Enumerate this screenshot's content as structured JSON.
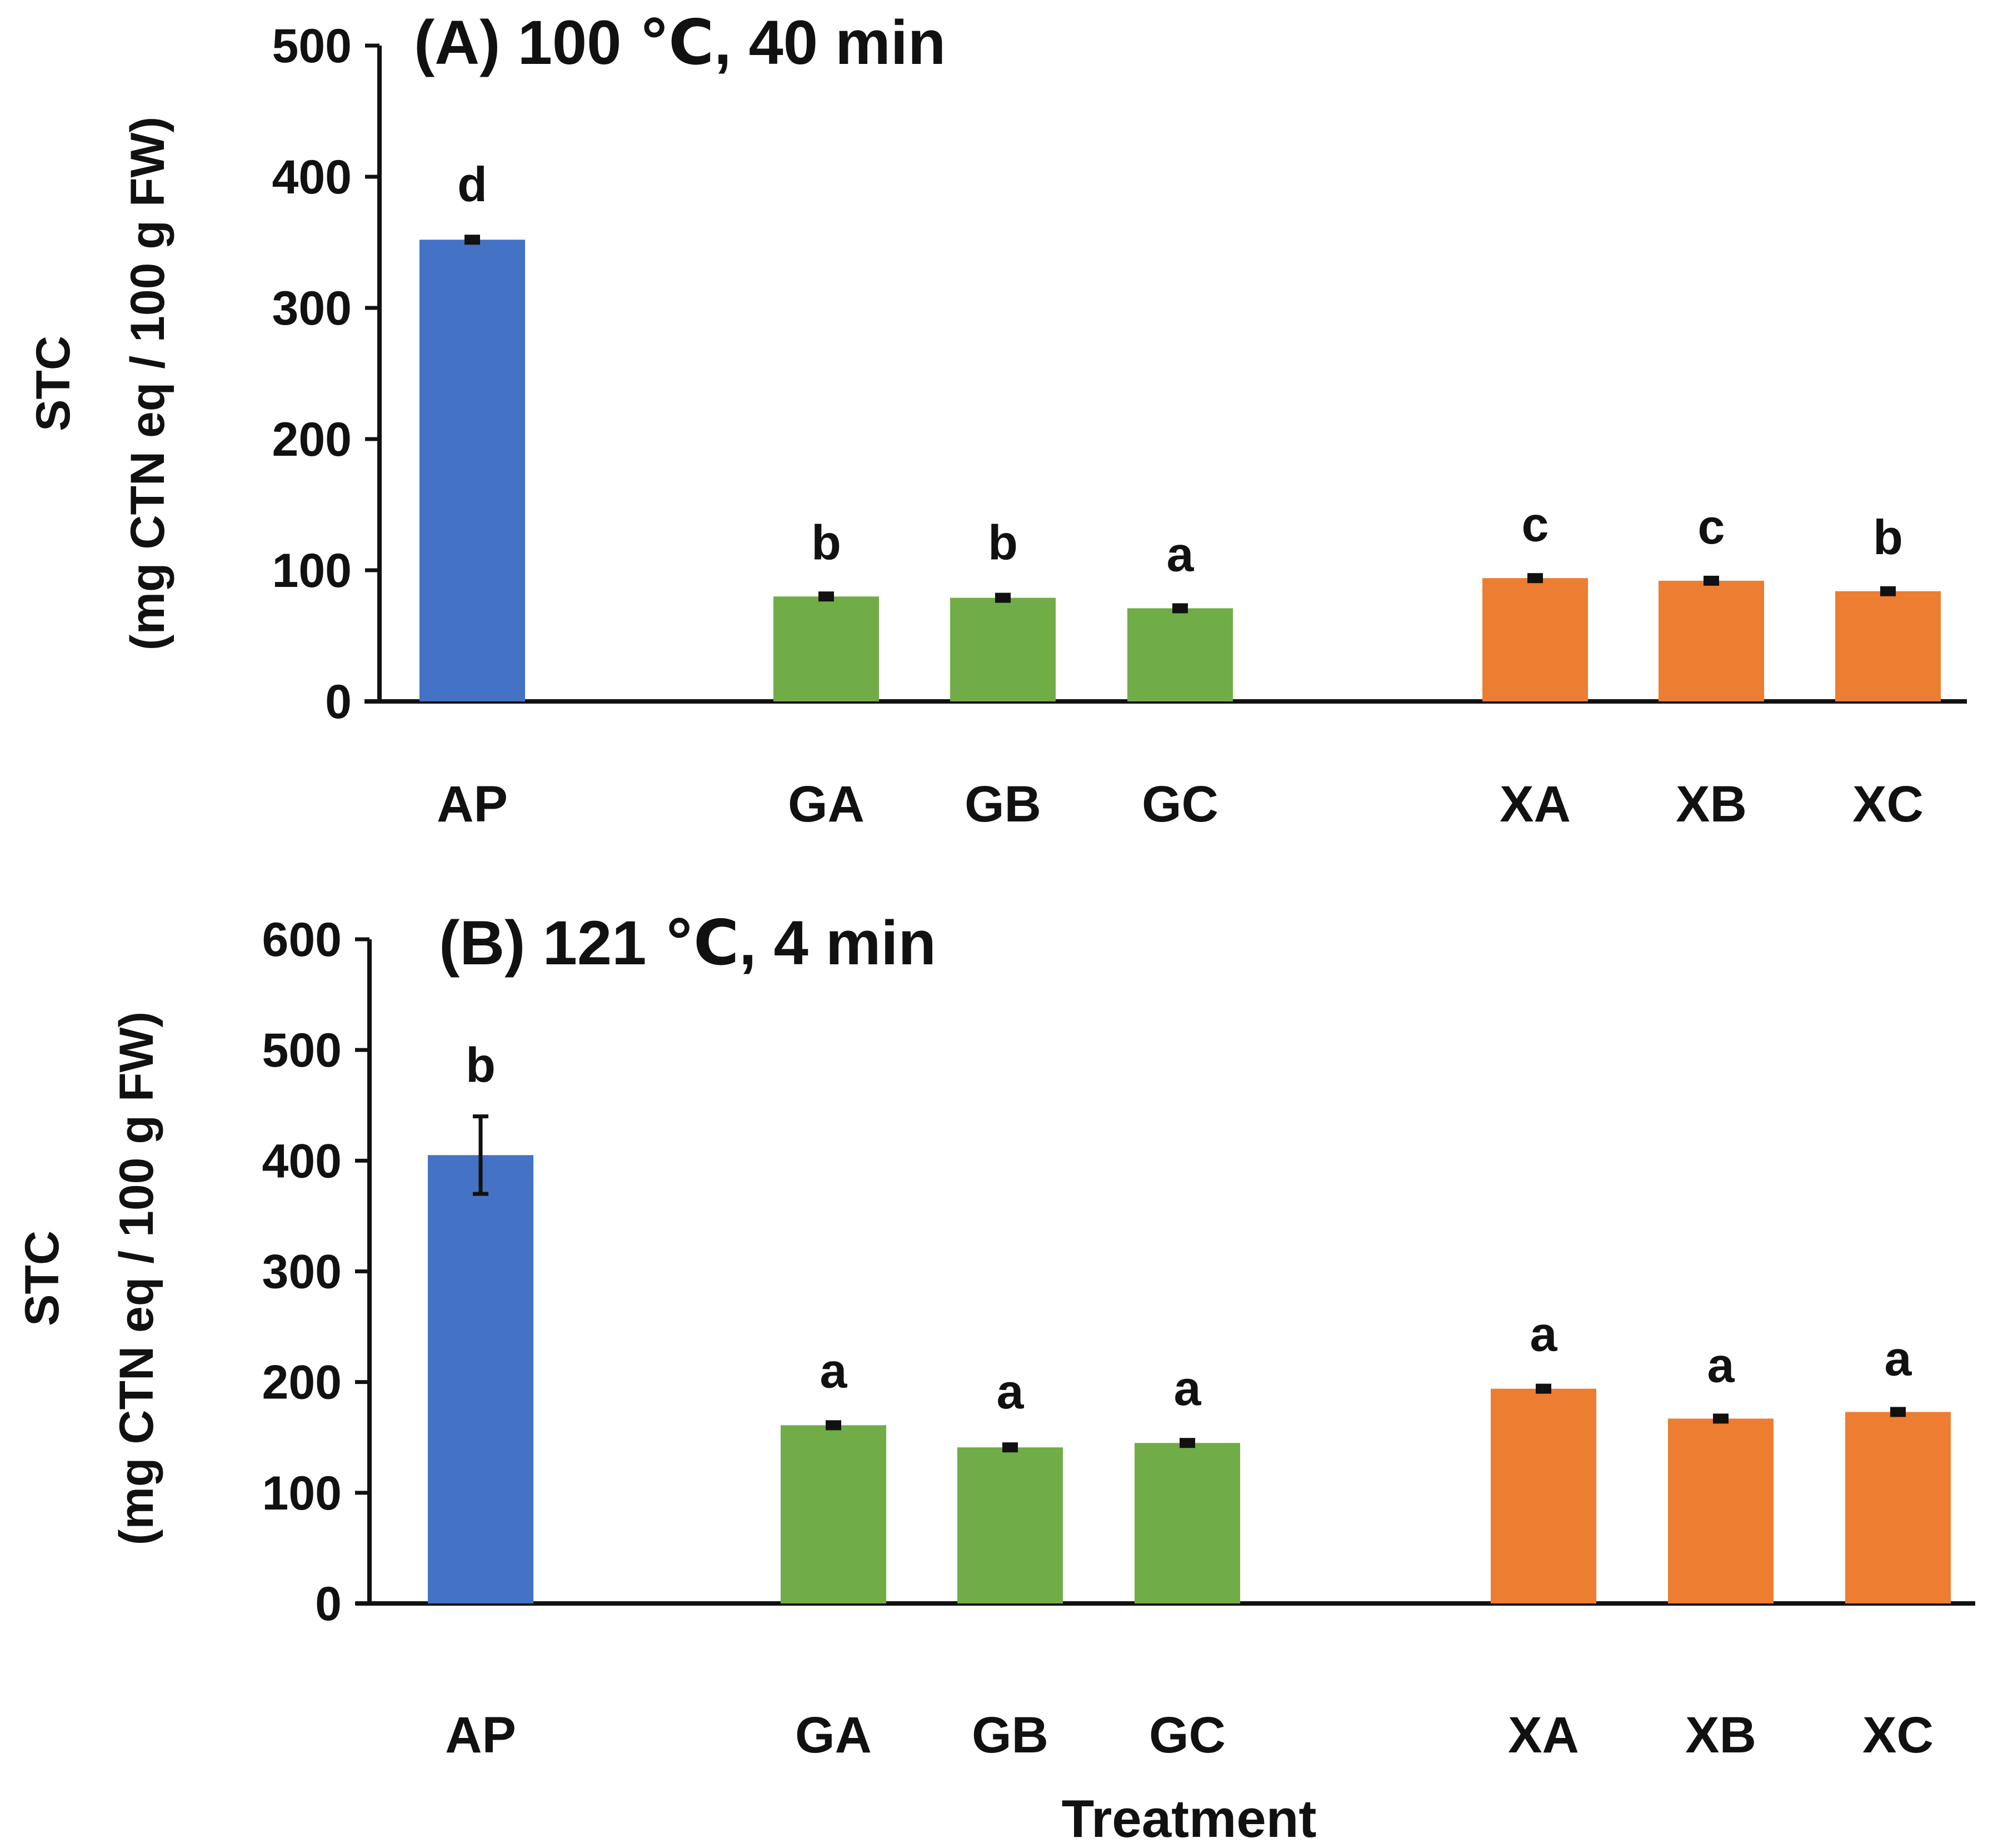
{
  "colors": {
    "AP": "#4472C4",
    "G": "#70AD47",
    "X": "#ED7D31",
    "axis": "#111111",
    "errorbar": "#111111"
  },
  "xlabel": "Treatment",
  "chart_data": [
    {
      "type": "bar",
      "title": "(A) 100 ℃, 40 min",
      "ylabel_line1": "STC",
      "ylabel_line2": "(mg CTN eq / 100 g FW)",
      "ylim": [
        0,
        500
      ],
      "yticks": [
        "0",
        "100",
        "200",
        "300",
        "400",
        "500"
      ],
      "categories": [
        "AP",
        "GA",
        "GB",
        "GC",
        "XA",
        "XB",
        "XC"
      ],
      "groups": [
        "AP",
        "G",
        "G",
        "G",
        "X",
        "X",
        "X"
      ],
      "values": [
        352,
        80,
        79,
        71,
        94,
        92,
        84
      ],
      "errors": [
        3,
        2,
        3,
        2,
        2,
        2,
        2
      ],
      "significance": [
        "d",
        "b",
        "b",
        "a",
        "c",
        "c",
        "b"
      ]
    },
    {
      "type": "bar",
      "title": "(B) 121 ℃, 4 min",
      "ylabel_line1": "STC",
      "ylabel_line2": "(mg CTN eq / 100 g FW)",
      "ylim": [
        0,
        600
      ],
      "yticks": [
        "0",
        "100",
        "200",
        "300",
        "400",
        "500",
        "600"
      ],
      "categories": [
        "AP",
        "GA",
        "GB",
        "GC",
        "XA",
        "XB",
        "XC"
      ],
      "groups": [
        "AP",
        "G",
        "G",
        "G",
        "X",
        "X",
        "X"
      ],
      "values": [
        405,
        161,
        141,
        145,
        194,
        167,
        173
      ],
      "errors": [
        35,
        3,
        4,
        3,
        3,
        2,
        2
      ],
      "significance": [
        "b",
        "a",
        "a",
        "a",
        "a",
        "a",
        "a"
      ]
    }
  ]
}
